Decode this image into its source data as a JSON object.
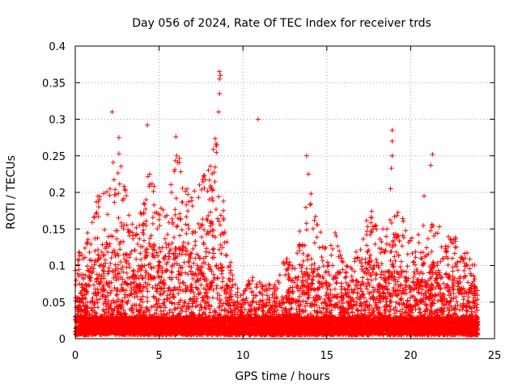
{
  "chart_data": {
    "type": "scatter",
    "title": "Day 056 of 2024, Rate Of TEC Index for receiver trds",
    "xlabel": "GPS time / hours",
    "ylabel": "ROTI / TECUs",
    "xlim": [
      0,
      25
    ],
    "ylim": [
      0,
      0.4
    ],
    "x_ticks": [
      0,
      5,
      10,
      15,
      20,
      25
    ],
    "x_tick_labels": [
      "0",
      "5",
      "10",
      "15",
      "20",
      "25"
    ],
    "y_ticks": [
      0,
      0.05,
      0.1,
      0.15,
      0.2,
      0.25,
      0.3,
      0.35,
      0.4
    ],
    "y_tick_labels": [
      "0",
      "0.05",
      "0.1",
      "0.15",
      "0.2",
      "0.25",
      "0.3",
      "0.35",
      "0.4"
    ],
    "grid": true,
    "marker": "+",
    "marker_color": "#ff0000",
    "envelope": [
      {
        "x": 0.0,
        "ymax": 0.1
      },
      {
        "x": 0.5,
        "ymax": 0.13
      },
      {
        "x": 1.0,
        "ymax": 0.17
      },
      {
        "x": 1.5,
        "ymax": 0.21
      },
      {
        "x": 2.0,
        "ymax": 0.2
      },
      {
        "x": 2.5,
        "ymax": 0.27
      },
      {
        "x": 3.0,
        "ymax": 0.2
      },
      {
        "x": 3.5,
        "ymax": 0.14
      },
      {
        "x": 4.0,
        "ymax": 0.18
      },
      {
        "x": 4.5,
        "ymax": 0.24
      },
      {
        "x": 5.0,
        "ymax": 0.17
      },
      {
        "x": 5.5,
        "ymax": 0.2
      },
      {
        "x": 6.0,
        "ymax": 0.26
      },
      {
        "x": 6.5,
        "ymax": 0.22
      },
      {
        "x": 7.0,
        "ymax": 0.2
      },
      {
        "x": 7.5,
        "ymax": 0.21
      },
      {
        "x": 8.0,
        "ymax": 0.25
      },
      {
        "x": 8.5,
        "ymax": 0.28
      },
      {
        "x": 9.0,
        "ymax": 0.14
      },
      {
        "x": 9.5,
        "ymax": 0.07
      },
      {
        "x": 10.0,
        "ymax": 0.06
      },
      {
        "x": 10.5,
        "ymax": 0.08
      },
      {
        "x": 11.0,
        "ymax": 0.08
      },
      {
        "x": 11.5,
        "ymax": 0.07
      },
      {
        "x": 12.0,
        "ymax": 0.07
      },
      {
        "x": 12.5,
        "ymax": 0.12
      },
      {
        "x": 13.0,
        "ymax": 0.1
      },
      {
        "x": 13.5,
        "ymax": 0.16
      },
      {
        "x": 14.0,
        "ymax": 0.2
      },
      {
        "x": 14.5,
        "ymax": 0.15
      },
      {
        "x": 15.0,
        "ymax": 0.12
      },
      {
        "x": 15.5,
        "ymax": 0.14
      },
      {
        "x": 16.0,
        "ymax": 0.11
      },
      {
        "x": 16.5,
        "ymax": 0.1
      },
      {
        "x": 17.0,
        "ymax": 0.13
      },
      {
        "x": 17.5,
        "ymax": 0.18
      },
      {
        "x": 18.0,
        "ymax": 0.16
      },
      {
        "x": 18.5,
        "ymax": 0.15
      },
      {
        "x": 19.0,
        "ymax": 0.17
      },
      {
        "x": 19.5,
        "ymax": 0.17
      },
      {
        "x": 20.0,
        "ymax": 0.13
      },
      {
        "x": 20.5,
        "ymax": 0.16
      },
      {
        "x": 21.0,
        "ymax": 0.14
      },
      {
        "x": 21.5,
        "ymax": 0.17
      },
      {
        "x": 22.0,
        "ymax": 0.12
      },
      {
        "x": 22.5,
        "ymax": 0.15
      },
      {
        "x": 23.0,
        "ymax": 0.11
      },
      {
        "x": 23.5,
        "ymax": 0.12
      },
      {
        "x": 24.0,
        "ymax": 0.09
      }
    ],
    "outliers": [
      {
        "x": 2.2,
        "y": 0.31
      },
      {
        "x": 2.6,
        "y": 0.275
      },
      {
        "x": 4.3,
        "y": 0.292
      },
      {
        "x": 8.6,
        "y": 0.365
      },
      {
        "x": 8.65,
        "y": 0.36
      },
      {
        "x": 8.6,
        "y": 0.355
      },
      {
        "x": 8.6,
        "y": 0.335
      },
      {
        "x": 8.55,
        "y": 0.31
      },
      {
        "x": 10.9,
        "y": 0.3
      },
      {
        "x": 18.9,
        "y": 0.285
      },
      {
        "x": 18.9,
        "y": 0.27
      },
      {
        "x": 18.9,
        "y": 0.25
      },
      {
        "x": 18.85,
        "y": 0.233
      },
      {
        "x": 18.8,
        "y": 0.205
      },
      {
        "x": 21.3,
        "y": 0.252
      },
      {
        "x": 21.2,
        "y": 0.237
      },
      {
        "x": 13.8,
        "y": 0.25
      },
      {
        "x": 13.9,
        "y": 0.225
      },
      {
        "x": 6.0,
        "y": 0.276
      },
      {
        "x": 6.05,
        "y": 0.25
      },
      {
        "x": 20.8,
        "y": 0.195
      }
    ],
    "baseline_range": [
      0.005,
      0.03
    ],
    "n_points": 9000
  }
}
